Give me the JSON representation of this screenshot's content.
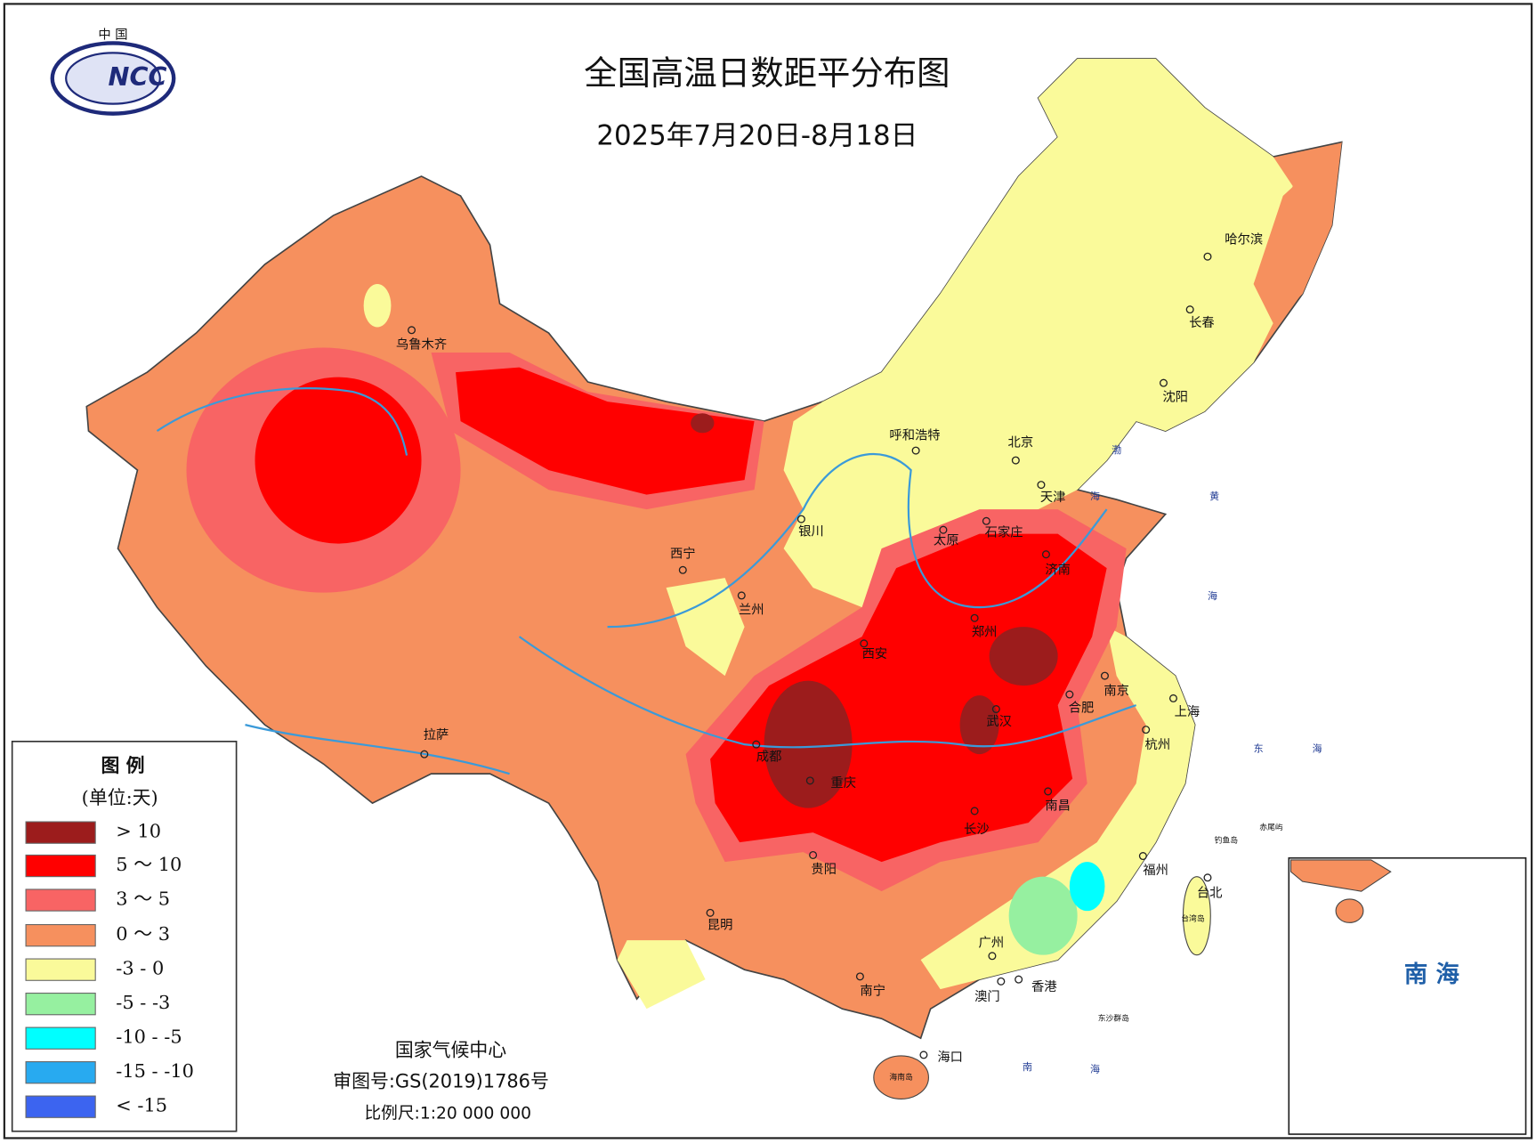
{
  "title": "全国高温日数距平分布图",
  "subtitle": "2025年7月20日-8月18日",
  "logo": {
    "top": "中 国",
    "text": "NCC"
  },
  "legend": {
    "title": "图 例",
    "unit": "(单位:天)",
    "items": [
      {
        "label": "> 10",
        "color": "#9c1c1c"
      },
      {
        "label": "5 ～ 10",
        "color": "#ff0000"
      },
      {
        "label": "3 ～ 5",
        "color": "#f86464"
      },
      {
        "label": "0 ～ 3",
        "color": "#f6905e"
      },
      {
        "label": "-3 - 0",
        "color": "#fafa9a"
      },
      {
        "label": "-5 - -3",
        "color": "#96f0a0"
      },
      {
        "label": "-10 - -5",
        "color": "#00ffff"
      },
      {
        "label": "-15 - -10",
        "color": "#28aaf0"
      },
      {
        "label": "< -15",
        "color": "#3c64f0"
      }
    ]
  },
  "cities": [
    "乌鲁木齐",
    "呼和浩特",
    "北京",
    "天津",
    "哈尔滨",
    "长春",
    "沈阳",
    "银川",
    "太原",
    "石家庄",
    "济南",
    "西宁",
    "兰州",
    "郑州",
    "西安",
    "南京",
    "上海",
    "合肥",
    "武汉",
    "杭州",
    "成都",
    "重庆",
    "拉萨",
    "南昌",
    "长沙",
    "福州",
    "台北",
    "贵阳",
    "昆明",
    "广州",
    "南宁",
    "香港",
    "澳门",
    "海口"
  ],
  "places": [
    "台湾岛",
    "海南岛",
    "东沙群岛",
    "钓鱼岛",
    "赤尾屿"
  ],
  "seas": [
    "渤",
    "海",
    "黄",
    "海",
    "东",
    "海",
    "南",
    "海"
  ],
  "footer": {
    "org": "国家气候中心",
    "approval": "审图号:GS(2019)1786号",
    "scale": "比例尺:1:20 000 000"
  },
  "inset": {
    "label": "南 海"
  }
}
